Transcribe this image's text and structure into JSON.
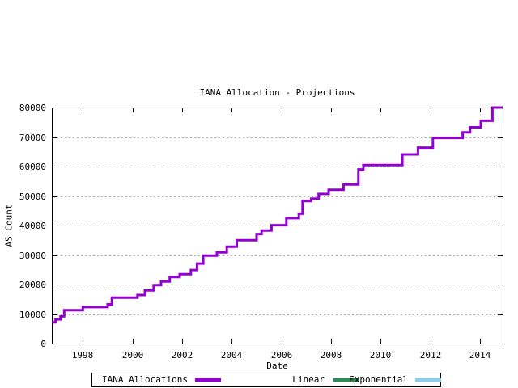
{
  "chart_data": {
    "type": "line",
    "title": "IANA Allocation - Projections",
    "xlabel": "Date",
    "ylabel": "AS Count",
    "xlim": [
      1996.75,
      2014.91
    ],
    "ylim": [
      0,
      80000
    ],
    "x_ticks": [
      1998,
      2000,
      2002,
      2004,
      2006,
      2008,
      2010,
      2012,
      2014
    ],
    "y_ticks": [
      0,
      10000,
      20000,
      30000,
      40000,
      50000,
      60000,
      70000,
      80000
    ],
    "grid": "horizontal-dashed",
    "grid_color": "#a8a8a8",
    "border_color": "#000000",
    "legend_position": "bottom-center-outside",
    "series": [
      {
        "name": "IANA Allocations",
        "color": "#9400d3",
        "style": "steps",
        "line_width": 3,
        "plotted": true,
        "steps": [
          [
            1996.75,
            7200
          ],
          [
            1996.9,
            8200
          ],
          [
            1997.1,
            9200
          ],
          [
            1997.25,
            11300
          ],
          [
            1998.0,
            12350
          ],
          [
            1999.0,
            13300
          ],
          [
            1999.17,
            15550
          ],
          [
            2000.2,
            16450
          ],
          [
            2000.5,
            18000
          ],
          [
            2000.85,
            19800
          ],
          [
            2001.15,
            21050
          ],
          [
            2001.5,
            22550
          ],
          [
            2001.9,
            23500
          ],
          [
            2002.35,
            24900
          ],
          [
            2002.6,
            27100
          ],
          [
            2002.85,
            29800
          ],
          [
            2003.4,
            30900
          ],
          [
            2003.8,
            32800
          ],
          [
            2004.2,
            35000
          ],
          [
            2005.0,
            37100
          ],
          [
            2005.2,
            38300
          ],
          [
            2005.6,
            40100
          ],
          [
            2006.2,
            42500
          ],
          [
            2006.7,
            44000
          ],
          [
            2006.85,
            48300
          ],
          [
            2007.2,
            49100
          ],
          [
            2007.5,
            50700
          ],
          [
            2007.9,
            52100
          ],
          [
            2008.5,
            53900
          ],
          [
            2009.1,
            59000
          ],
          [
            2009.3,
            60500
          ],
          [
            2010.87,
            64100
          ],
          [
            2011.5,
            66400
          ],
          [
            2012.1,
            69700
          ],
          [
            2013.3,
            71600
          ],
          [
            2013.6,
            73300
          ],
          [
            2014.03,
            75500
          ],
          [
            2014.5,
            80000
          ]
        ],
        "end_x": 2014.91
      },
      {
        "name": "Linear",
        "color": "#2e8b57",
        "style": "line",
        "plotted": false
      },
      {
        "name": "Exponential",
        "color": "#87ceeb",
        "style": "line",
        "plotted": false
      }
    ]
  },
  "layout_note": "projection series appear in legend only; no green/blue lines visible in plot area"
}
